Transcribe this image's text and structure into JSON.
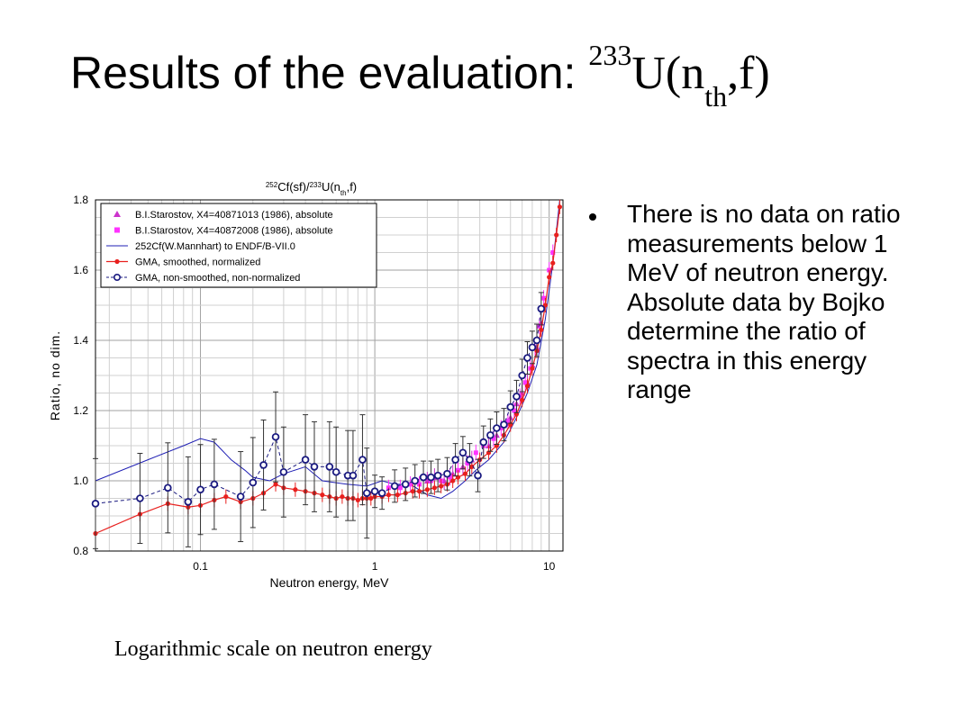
{
  "slide": {
    "title_text": "Results of the evaluation: ",
    "title_sup": "233",
    "title_main": "U(n",
    "title_sub": "th",
    "title_end": ",f)",
    "bullet": "There is no data on ratio measurements below 1 MeV of neutron energy. Absolute data by Bojko determine the ratio of spectra in this energy range",
    "caption": "Logarithmic scale on neutron energy"
  },
  "chart_data": {
    "type": "scatter",
    "title_parts": [
      "252",
      "Cf(sf)/",
      "233",
      "U(n",
      "th",
      ",f)"
    ],
    "xlabel": "Neutron energy, MeV",
    "ylabel": "Ratio, no dim.",
    "xscale": "log",
    "xlim": [
      0.025,
      12
    ],
    "ylim": [
      0.8,
      1.8
    ],
    "xticks": [
      0.1,
      1,
      10
    ],
    "xtick_labels": [
      "0.1",
      "1",
      "10"
    ],
    "yticks": [
      0.8,
      1.0,
      1.2,
      1.4,
      1.6,
      1.8
    ],
    "ytick_labels": [
      "0.8",
      "1.0",
      "1.2",
      "1.4",
      "1.6",
      "1.8"
    ],
    "grid": true,
    "legend_position": "top-left",
    "series": [
      {
        "name": "B.I.Starostov, X4=40871013 (1986), absolute",
        "color": "#cc33cc",
        "marker": "triangle",
        "x": [
          2.0,
          2.2,
          2.5,
          2.8,
          3.2,
          3.6,
          4.5,
          5.0,
          5.5,
          6.0,
          6.5,
          7.0,
          7.5,
          8.0,
          8.5,
          9.0
        ],
        "y": [
          1.0,
          1.01,
          1.0,
          1.02,
          1.04,
          1.06,
          1.1,
          1.13,
          1.16,
          1.18,
          1.22,
          1.25,
          1.28,
          1.33,
          1.38,
          1.45
        ]
      },
      {
        "name": "B.I.Starostov, X4=40872008 (1986), absolute",
        "color": "#ff33ff",
        "marker": "square",
        "x": [
          1.2,
          1.4,
          1.6,
          1.8,
          2.1,
          2.4,
          2.7,
          3.0,
          3.4,
          3.8,
          4.2,
          4.8,
          5.3,
          5.8,
          6.3,
          6.8,
          7.3,
          7.8,
          8.3,
          8.8,
          9.3,
          10.0,
          10.5
        ],
        "y": [
          0.98,
          0.98,
          0.99,
          0.99,
          1.0,
          1.0,
          1.01,
          1.03,
          1.05,
          1.08,
          1.1,
          1.12,
          1.15,
          1.17,
          1.2,
          1.24,
          1.28,
          1.32,
          1.38,
          1.44,
          1.52,
          1.6,
          1.65
        ]
      },
      {
        "name": "252Cf(W.Mannhart) to ENDF/B-VII.0",
        "color": "#1f1fb4",
        "marker": "line",
        "x": [
          0.025,
          0.05,
          0.08,
          0.1,
          0.12,
          0.15,
          0.18,
          0.2,
          0.25,
          0.3,
          0.4,
          0.5,
          0.7,
          0.9,
          1.1,
          1.3,
          1.6,
          2.0,
          2.4,
          2.8,
          3.3,
          3.8,
          4.5,
          5.5,
          6.5,
          7.5,
          8.5,
          9.5,
          10.5,
          11.5
        ],
        "y": [
          1.0,
          1.06,
          1.1,
          1.12,
          1.11,
          1.06,
          1.03,
          1.01,
          1.0,
          1.02,
          1.04,
          1.0,
          0.99,
          0.985,
          1.0,
          0.99,
          0.99,
          0.96,
          0.95,
          0.97,
          1.0,
          1.03,
          1.06,
          1.11,
          1.18,
          1.25,
          1.33,
          1.46,
          1.62,
          1.8
        ]
      },
      {
        "name": "GMA, smoothed, normalized",
        "color": "#e8201e",
        "marker": "circle",
        "x": [
          0.025,
          0.045,
          0.065,
          0.085,
          0.1,
          0.12,
          0.14,
          0.17,
          0.2,
          0.23,
          0.27,
          0.3,
          0.35,
          0.4,
          0.45,
          0.5,
          0.55,
          0.6,
          0.65,
          0.7,
          0.75,
          0.8,
          0.85,
          0.9,
          0.95,
          1.0,
          1.1,
          1.2,
          1.35,
          1.5,
          1.65,
          1.8,
          2.0,
          2.2,
          2.4,
          2.6,
          2.8,
          3.0,
          3.3,
          3.6,
          4.0,
          4.5,
          5.0,
          5.5,
          6.0,
          6.5,
          7.0,
          7.5,
          8.0,
          8.5,
          9.0,
          9.5,
          10.0,
          10.5,
          11.0,
          11.5
        ],
        "y": [
          0.85,
          0.905,
          0.935,
          0.925,
          0.93,
          0.945,
          0.955,
          0.94,
          0.95,
          0.965,
          0.99,
          0.98,
          0.975,
          0.97,
          0.965,
          0.96,
          0.955,
          0.95,
          0.955,
          0.95,
          0.95,
          0.945,
          0.95,
          0.95,
          0.95,
          0.955,
          0.955,
          0.96,
          0.96,
          0.965,
          0.97,
          0.97,
          0.975,
          0.98,
          0.985,
          0.99,
          1.0,
          1.01,
          1.02,
          1.04,
          1.06,
          1.08,
          1.1,
          1.13,
          1.16,
          1.19,
          1.23,
          1.27,
          1.32,
          1.37,
          1.43,
          1.5,
          1.58,
          1.62,
          1.7,
          1.78
        ]
      },
      {
        "name": "GMA, non-smoothed, non-normalized",
        "color": "#1a1a80",
        "marker": "open-circle",
        "x": [
          0.025,
          0.045,
          0.065,
          0.085,
          0.1,
          0.12,
          0.17,
          0.2,
          0.23,
          0.27,
          0.3,
          0.4,
          0.45,
          0.55,
          0.6,
          0.7,
          0.75,
          0.85,
          0.9,
          1.0,
          1.1,
          1.3,
          1.5,
          1.7,
          1.9,
          2.1,
          2.3,
          2.6,
          2.9,
          3.2,
          3.5,
          3.9,
          4.2,
          4.6,
          5.0,
          5.5,
          6.0,
          6.5,
          7.0,
          7.5,
          8.0,
          8.5,
          9.0
        ],
        "y": [
          0.935,
          0.95,
          0.98,
          0.94,
          0.975,
          0.99,
          0.955,
          0.995,
          1.045,
          1.125,
          1.025,
          1.06,
          1.04,
          1.04,
          1.025,
          1.015,
          1.015,
          1.06,
          0.965,
          0.97,
          0.965,
          0.985,
          0.99,
          1.0,
          1.01,
          1.01,
          1.015,
          1.02,
          1.06,
          1.08,
          1.06,
          1.015,
          1.11,
          1.13,
          1.15,
          1.16,
          1.21,
          1.24,
          1.3,
          1.35,
          1.38,
          1.4,
          1.49
        ]
      }
    ]
  }
}
